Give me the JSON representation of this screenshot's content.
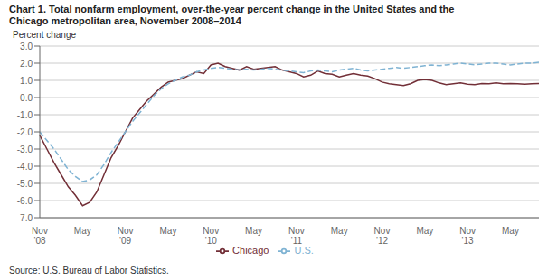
{
  "chart_data": {
    "type": "line",
    "title": "Chart 1. Total nonfarm employment, over-the-year percent change in the United States and the\nChicago metropolitan area, November 2008–2014",
    "ylabel": "Percent change",
    "annotations": [
      "Source: U.S. Bureau of Labor Statistics."
    ],
    "categories": [
      "Nov\n'08",
      null,
      null,
      null,
      null,
      null,
      "May",
      null,
      null,
      null,
      null,
      null,
      "Nov\n'09",
      null,
      null,
      null,
      null,
      null,
      "May",
      null,
      null,
      null,
      null,
      null,
      "Nov\n'10",
      null,
      null,
      null,
      null,
      null,
      "May",
      null,
      null,
      null,
      null,
      null,
      "Nov\n'11",
      null,
      null,
      null,
      null,
      null,
      "May",
      null,
      null,
      null,
      null,
      null,
      "Nov\n'12",
      null,
      null,
      null,
      null,
      null,
      "May",
      null,
      null,
      null,
      null,
      null,
      "Nov\n'13",
      null,
      null,
      null,
      null,
      null,
      "May",
      null,
      null,
      null,
      null
    ],
    "series": [
      {
        "name": "Chicago",
        "color": "#722F37",
        "line_style": "solid",
        "values": [
          -2.2,
          -3.0,
          -3.8,
          -4.5,
          -5.2,
          -5.7,
          -6.3,
          -6.1,
          -5.5,
          -4.5,
          -3.5,
          -2.8,
          -2.0,
          -1.2,
          -0.7,
          -0.2,
          0.2,
          0.6,
          0.9,
          1.0,
          1.1,
          1.3,
          1.5,
          1.4,
          1.9,
          2.0,
          1.8,
          1.7,
          1.6,
          1.8,
          1.65,
          1.7,
          1.75,
          1.8,
          1.6,
          1.5,
          1.4,
          1.2,
          1.3,
          1.55,
          1.4,
          1.35,
          1.2,
          1.3,
          1.4,
          1.3,
          1.25,
          1.1,
          0.9,
          0.8,
          0.75,
          0.7,
          0.8,
          1.0,
          1.05,
          1.0,
          0.85,
          0.75,
          0.8,
          0.85,
          0.78,
          0.75,
          0.82,
          0.8,
          0.85,
          0.8,
          0.82,
          0.8,
          0.78,
          0.8,
          0.82
        ]
      },
      {
        "name": "U.S.",
        "color": "#7FB3D3",
        "line_style": "dashed",
        "values": [
          -2.0,
          -2.5,
          -3.0,
          -3.6,
          -4.2,
          -4.6,
          -4.9,
          -4.8,
          -4.5,
          -3.9,
          -3.2,
          -2.6,
          -2.0,
          -1.4,
          -0.9,
          -0.4,
          0.1,
          0.5,
          0.8,
          1.0,
          1.2,
          1.3,
          1.5,
          1.6,
          1.7,
          1.75,
          1.7,
          1.65,
          1.6,
          1.65,
          1.6,
          1.65,
          1.7,
          1.65,
          1.6,
          1.55,
          1.5,
          1.45,
          1.55,
          1.6,
          1.55,
          1.5,
          1.6,
          1.65,
          1.7,
          1.6,
          1.55,
          1.6,
          1.65,
          1.7,
          1.75,
          1.7,
          1.75,
          1.8,
          1.85,
          1.9,
          1.85,
          1.9,
          1.95,
          2.0,
          1.95,
          1.9,
          1.95,
          2.0,
          2.0,
          1.95,
          1.9,
          1.95,
          2.0,
          2.0,
          2.05
        ]
      }
    ],
    "ylim": [
      -7.0,
      3.0
    ],
    "yticks": [
      {
        "value": -7.0,
        "label": "-7.0"
      },
      {
        "value": -6.0,
        "label": "-6.0"
      },
      {
        "value": -5.0,
        "label": "-5.0"
      },
      {
        "value": -4.0,
        "label": "-4.0"
      },
      {
        "value": -3.0,
        "label": "-3.0"
      },
      {
        "value": -2.0,
        "label": "-2.0"
      },
      {
        "value": -1.0,
        "label": "-1.0"
      },
      {
        "value": 0.0,
        "label": "0.0"
      },
      {
        "value": 1.0,
        "label": "1.0"
      },
      {
        "value": 2.0,
        "label": "2.0"
      },
      {
        "value": 3.0,
        "label": "3.0"
      }
    ],
    "grid": true,
    "legend": "bottom"
  }
}
